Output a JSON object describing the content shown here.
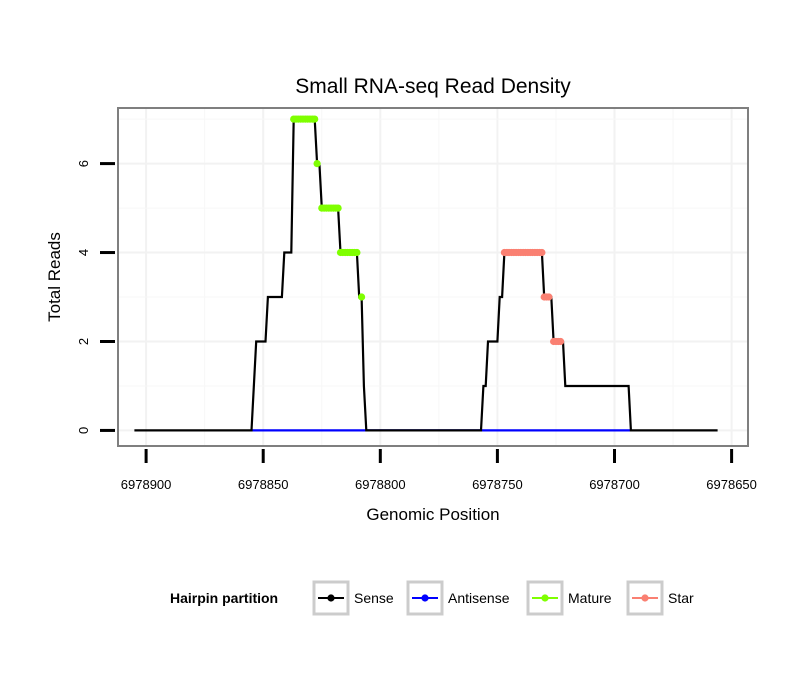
{
  "chart_data": {
    "type": "line",
    "title": "Small RNA-seq Read Density",
    "xlabel": "Genomic Position",
    "ylabel": "Total Reads",
    "xlim": [
      6978912,
      6978643
    ],
    "ylim": [
      -0.35,
      7.25
    ],
    "x_reversed": true,
    "x_ticks": [
      {
        "value": 6978900,
        "label": "6978900"
      },
      {
        "value": 6978850,
        "label": "6978850"
      },
      {
        "value": 6978800,
        "label": "6978800"
      },
      {
        "value": 6978750,
        "label": "6978750"
      },
      {
        "value": 6978700,
        "label": "6978700"
      },
      {
        "value": 6978650,
        "label": "6978650"
      }
    ],
    "y_ticks": [
      {
        "value": 0,
        "label": "0"
      },
      {
        "value": 2,
        "label": "2"
      },
      {
        "value": 4,
        "label": "4"
      },
      {
        "value": 6,
        "label": "6"
      }
    ],
    "legend": {
      "title": "Hairpin partition",
      "position": "bottom",
      "entries": [
        {
          "name": "Sense",
          "color": "#000000"
        },
        {
          "name": "Antisense",
          "color": "#0000ff"
        },
        {
          "name": "Mature",
          "color": "#7fff00"
        },
        {
          "name": "Star",
          "color": "#fa8072"
        }
      ]
    },
    "series": [
      {
        "name": "Sense",
        "color": "#000000",
        "type": "line",
        "points": [
          [
            6978905,
            0
          ],
          [
            6978855,
            0
          ],
          [
            6978853,
            2
          ],
          [
            6978849,
            2
          ],
          [
            6978848,
            3
          ],
          [
            6978842,
            3
          ],
          [
            6978841,
            4
          ],
          [
            6978838,
            4
          ],
          [
            6978837,
            7
          ],
          [
            6978828,
            7
          ],
          [
            6978827,
            6
          ],
          [
            6978826,
            6
          ],
          [
            6978825,
            5
          ],
          [
            6978818,
            5
          ],
          [
            6978817,
            4
          ],
          [
            6978810,
            4
          ],
          [
            6978809,
            3
          ],
          [
            6978808,
            3
          ],
          [
            6978807,
            1
          ],
          [
            6978806,
            0
          ],
          [
            6978757,
            0
          ],
          [
            6978756,
            1
          ],
          [
            6978755,
            1
          ],
          [
            6978754,
            2
          ],
          [
            6978750,
            2
          ],
          [
            6978749,
            3
          ],
          [
            6978748,
            3
          ],
          [
            6978747,
            4
          ],
          [
            6978731,
            4
          ],
          [
            6978730,
            3
          ],
          [
            6978727,
            3
          ],
          [
            6978726,
            2
          ],
          [
            6978722,
            2
          ],
          [
            6978721,
            1
          ],
          [
            6978694,
            1
          ],
          [
            6978693,
            0
          ],
          [
            6978656,
            0
          ]
        ]
      },
      {
        "name": "Antisense",
        "color": "#0000ff",
        "type": "line",
        "points": [
          [
            6978855,
            0
          ],
          [
            6978806,
            0
          ],
          [
            6978757,
            0
          ],
          [
            6978693,
            0
          ]
        ]
      },
      {
        "name": "Mature",
        "color": "#7fff00",
        "type": "points",
        "points": [
          [
            6978837,
            7
          ],
          [
            6978836,
            7
          ],
          [
            6978835,
            7
          ],
          [
            6978834,
            7
          ],
          [
            6978833,
            7
          ],
          [
            6978832,
            7
          ],
          [
            6978831,
            7
          ],
          [
            6978830,
            7
          ],
          [
            6978829,
            7
          ],
          [
            6978828,
            7
          ],
          [
            6978827,
            6
          ],
          [
            6978825,
            5
          ],
          [
            6978824,
            5
          ],
          [
            6978823,
            5
          ],
          [
            6978822,
            5
          ],
          [
            6978821,
            5
          ],
          [
            6978820,
            5
          ],
          [
            6978819,
            5
          ],
          [
            6978818,
            5
          ],
          [
            6978817,
            4
          ],
          [
            6978816,
            4
          ],
          [
            6978815,
            4
          ],
          [
            6978814,
            4
          ],
          [
            6978813,
            4
          ],
          [
            6978812,
            4
          ],
          [
            6978811,
            4
          ],
          [
            6978810,
            4
          ],
          [
            6978808,
            3
          ]
        ]
      },
      {
        "name": "Star",
        "color": "#fa8072",
        "type": "points",
        "points": [
          [
            6978747,
            4
          ],
          [
            6978746,
            4
          ],
          [
            6978745,
            4
          ],
          [
            6978744,
            4
          ],
          [
            6978743,
            4
          ],
          [
            6978742,
            4
          ],
          [
            6978741,
            4
          ],
          [
            6978740,
            4
          ],
          [
            6978739,
            4
          ],
          [
            6978738,
            4
          ],
          [
            6978737,
            4
          ],
          [
            6978736,
            4
          ],
          [
            6978735,
            4
          ],
          [
            6978734,
            4
          ],
          [
            6978733,
            4
          ],
          [
            6978732,
            4
          ],
          [
            6978731,
            4
          ],
          [
            6978730,
            3
          ],
          [
            6978729,
            3
          ],
          [
            6978728,
            3
          ],
          [
            6978726,
            2
          ],
          [
            6978725,
            2
          ],
          [
            6978724,
            2
          ],
          [
            6978723,
            2
          ]
        ]
      }
    ]
  }
}
